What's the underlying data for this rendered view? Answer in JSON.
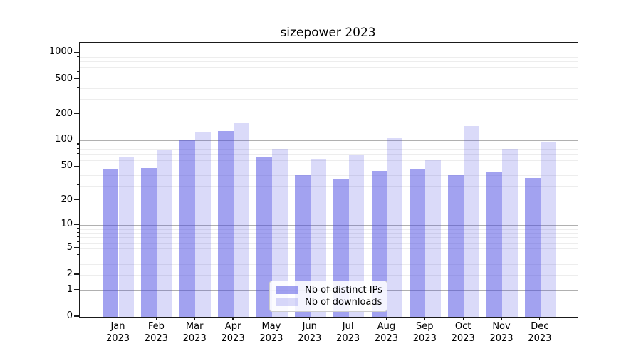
{
  "chart_data": {
    "type": "bar",
    "title": "sizepower 2023",
    "categories": [
      {
        "month": "Jan",
        "year": "2023"
      },
      {
        "month": "Feb",
        "year": "2023"
      },
      {
        "month": "Mar",
        "year": "2023"
      },
      {
        "month": "Apr",
        "year": "2023"
      },
      {
        "month": "May",
        "year": "2023"
      },
      {
        "month": "Jun",
        "year": "2023"
      },
      {
        "month": "Jul",
        "year": "2023"
      },
      {
        "month": "Aug",
        "year": "2023"
      },
      {
        "month": "Sep",
        "year": "2023"
      },
      {
        "month": "Oct",
        "year": "2023"
      },
      {
        "month": "Nov",
        "year": "2023"
      },
      {
        "month": "Dec",
        "year": "2023"
      }
    ],
    "series": [
      {
        "name": "Nb of distinct IPs",
        "color": "rgba(70,70,226,0.5)",
        "values": [
          47,
          48,
          100,
          130,
          65,
          40,
          36,
          45,
          46,
          40,
          43,
          37
        ]
      },
      {
        "name": "Nb of downloads",
        "color": "rgba(70,70,226,0.2)",
        "values": [
          65,
          78,
          123,
          159,
          80,
          61,
          68,
          106,
          60,
          147,
          80,
          95
        ]
      }
    ],
    "y_axis": {
      "scale": "log1p",
      "tick_labels": [
        "1000",
        "500",
        "200",
        "100",
        "50",
        "20",
        "10",
        "5",
        "2",
        "1",
        "0"
      ],
      "ylim": [
        0,
        1000
      ]
    },
    "xlabel": "",
    "ylabel": "",
    "grid": true,
    "legend_position": "bottom-center"
  }
}
